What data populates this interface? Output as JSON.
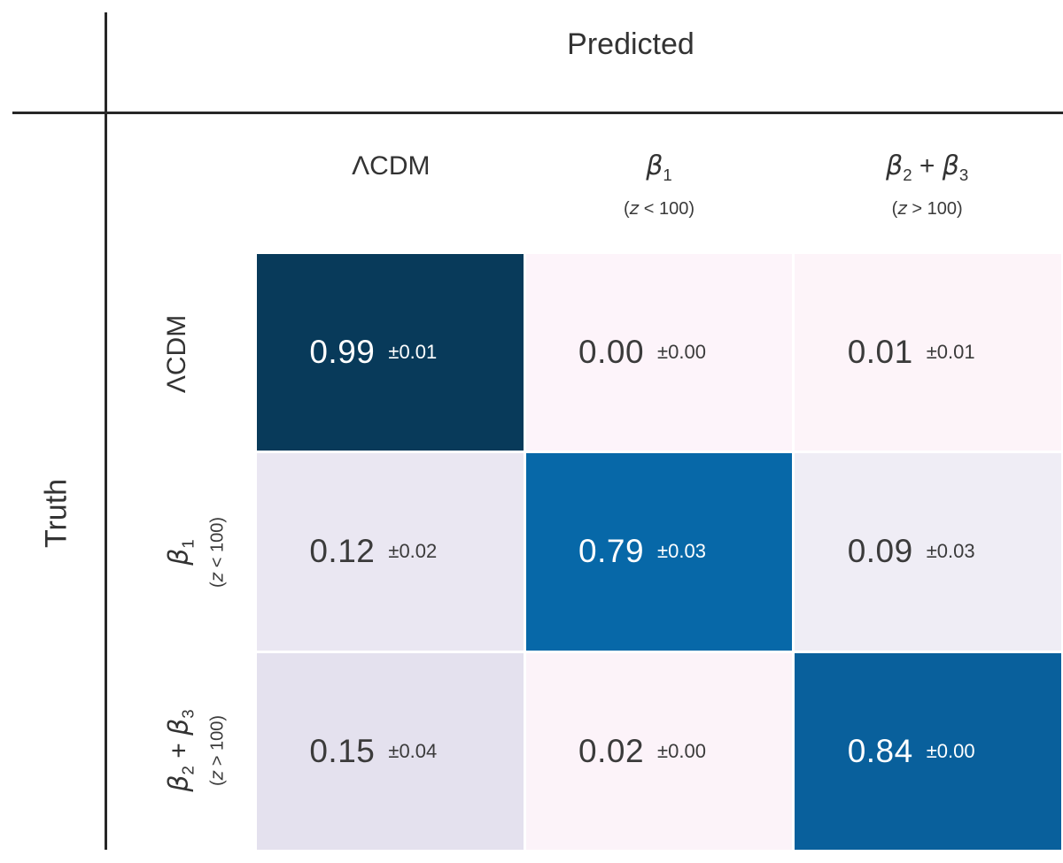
{
  "chart_data": {
    "type": "heatmap",
    "title": "Predicted",
    "row_axis_label": "Truth",
    "col_axis_label": "Predicted",
    "categories": [
      "ΛCDM",
      "β1 (z < 100)",
      "β2 + β3 (z > 100)"
    ],
    "matrix": [
      [
        0.99,
        0.0,
        0.01
      ],
      [
        0.12,
        0.79,
        0.09
      ],
      [
        0.15,
        0.02,
        0.84
      ]
    ],
    "errors": [
      [
        0.01,
        0.0,
        0.01
      ],
      [
        0.02,
        0.03,
        0.03
      ],
      [
        0.04,
        0.0,
        0.0
      ]
    ],
    "colormap": "PuBu",
    "value_range": [
      0,
      1
    ],
    "legend": "none",
    "grid": "off"
  },
  "title": "Predicted",
  "ylabel": "Truth",
  "classes": [
    {
      "label": "ΛCDM"
    },
    {
      "beta_a": "β",
      "sub_a": "1",
      "plus": "",
      "beta_b": "",
      "sub_b": "",
      "paren_pre": "(",
      "var": "z",
      "paren_post": " < 100)"
    },
    {
      "beta_a": "β",
      "sub_a": "2",
      "plus": " + ",
      "beta_b": "β",
      "sub_b": "3",
      "paren_pre": "(",
      "var": "z",
      "paren_post": " > 100)"
    }
  ],
  "cells": [
    {
      "value": "0.99",
      "error": "±0.01",
      "bg": "#083a5a",
      "fg": "#ffffff"
    },
    {
      "value": "0.00",
      "error": "±0.00",
      "bg": "#fdf4fa",
      "fg": "#3b3b3b"
    },
    {
      "value": "0.01",
      "error": "±0.01",
      "bg": "#fdf4f9",
      "fg": "#3b3b3b"
    },
    {
      "value": "0.12",
      "error": "±0.02",
      "bg": "#eae7f2",
      "fg": "#3b3b3b"
    },
    {
      "value": "0.79",
      "error": "±0.03",
      "bg": "#0768a8",
      "fg": "#ffffff"
    },
    {
      "value": "0.09",
      "error": "±0.03",
      "bg": "#efedf5",
      "fg": "#3b3b3b"
    },
    {
      "value": "0.15",
      "error": "±0.04",
      "bg": "#e4e1ee",
      "fg": "#3b3b3b"
    },
    {
      "value": "0.02",
      "error": "±0.00",
      "bg": "#fcf3f9",
      "fg": "#3b3b3b"
    },
    {
      "value": "0.84",
      "error": "±0.00",
      "bg": "#09609c",
      "fg": "#ffffff"
    }
  ],
  "colors": {
    "spine": "#272727",
    "text": "#333333"
  }
}
